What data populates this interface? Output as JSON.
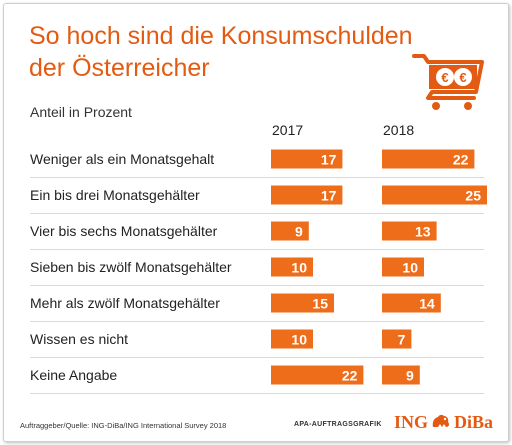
{
  "title": "So hoch sind die Konsumschulden der Österreicher",
  "subtitle": "Anteil in Prozent",
  "footer": {
    "source": "Auftraggeber/Quelle: ING-DiBa/ING International Survey 2018",
    "credit": "APA-AUFTRAGSGRAFIK",
    "logo_left": "ING",
    "logo_right": "DiBa"
  },
  "colors": {
    "accent": "#e35b12",
    "bar": "#ee6d1a",
    "gridline": "#cccccc"
  },
  "icons": {
    "cart": "shopping-cart-euro-icon",
    "lion": "ing-lion-icon"
  },
  "chart_data": {
    "type": "bar",
    "orientation": "horizontal",
    "categories": [
      "Weniger als ein Monatsgehalt",
      "Ein bis drei Monatsgehälter",
      "Vier bis sechs Monatsgehälter",
      "Sieben bis zwölf Monatsgehälter",
      "Mehr als zwölf Monatsgehälter",
      "Wissen es nicht",
      "Keine  Angabe"
    ],
    "series": [
      {
        "name": "2017",
        "values": [
          17,
          17,
          9,
          10,
          15,
          10,
          22
        ]
      },
      {
        "name": "2018",
        "values": [
          22,
          25,
          13,
          10,
          14,
          7,
          9
        ]
      }
    ],
    "data_labels": true,
    "gridlines": true
  }
}
